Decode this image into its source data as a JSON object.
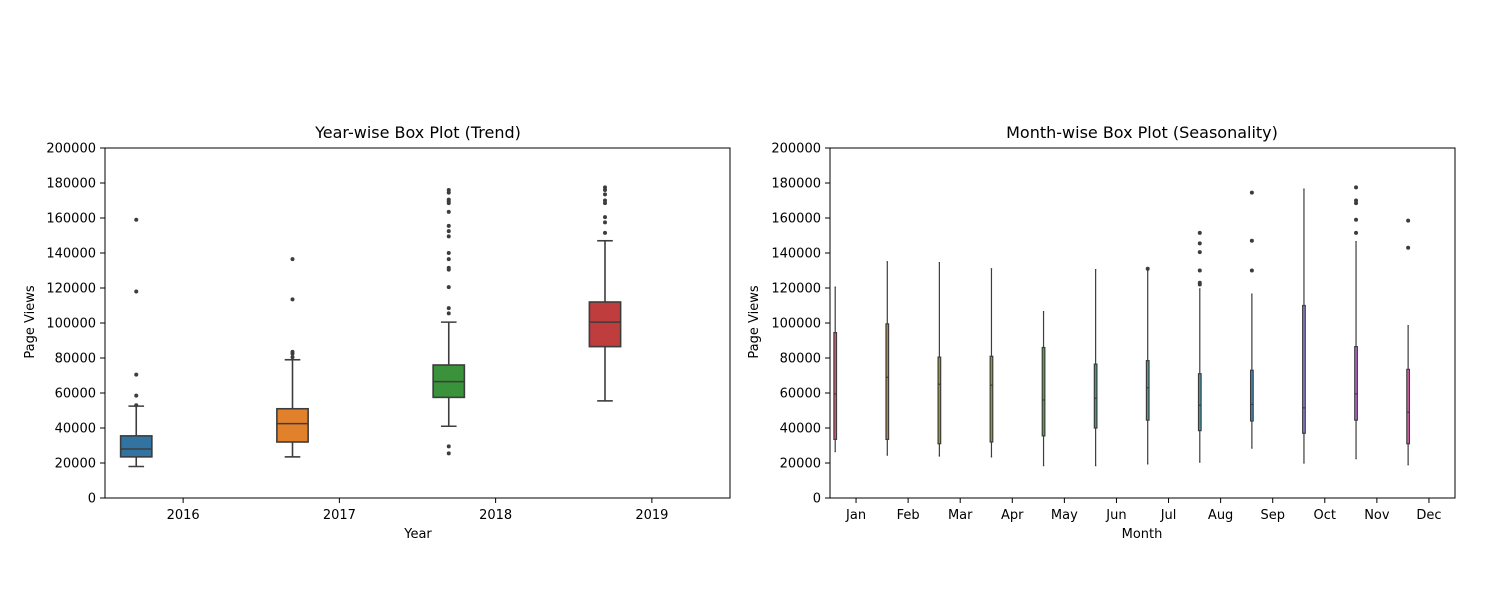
{
  "chart_data": [
    {
      "type": "boxplot",
      "title": "Year-wise Box Plot (Trend)",
      "xlabel": "Year",
      "ylabel": "Page Views",
      "ylim": [
        0,
        200000
      ],
      "yticks": [
        0,
        20000,
        40000,
        60000,
        80000,
        100000,
        120000,
        140000,
        160000,
        180000,
        200000
      ],
      "grid": false,
      "categories": [
        "2016",
        "2017",
        "2018",
        "2019"
      ],
      "series": [
        {
          "category": "2016",
          "color": "#3274a1",
          "q1": 23500,
          "median": 28000,
          "q3": 35500,
          "whislo": 18000,
          "whishi": 52500,
          "fliers": [
            53000,
            58500,
            70500,
            118000,
            159000
          ]
        },
        {
          "category": "2017",
          "color": "#e1812c",
          "q1": 32000,
          "median": 42500,
          "q3": 51000,
          "whislo": 23500,
          "whishi": 79000,
          "fliers": [
            80500,
            82500,
            83500,
            113500,
            136500
          ]
        },
        {
          "category": "2018",
          "color": "#3a923a",
          "q1": 57500,
          "median": 66500,
          "q3": 76000,
          "whislo": 41000,
          "whishi": 100500,
          "fliers": [
            25500,
            29500,
            105500,
            108500,
            120500,
            130500,
            131500,
            136500,
            140000,
            149500,
            152500,
            155500,
            163500,
            168500,
            169500,
            170500,
            174500,
            176000
          ]
        },
        {
          "category": "2019",
          "color": "#c03d3e",
          "q1": 86500,
          "median": 100500,
          "q3": 112000,
          "whislo": 55500,
          "whishi": 147000,
          "fliers": [
            151500,
            157500,
            160500,
            168500,
            170000,
            173500,
            176000,
            177500
          ]
        }
      ]
    },
    {
      "type": "boxplot",
      "title": "Month-wise Box Plot (Seasonality)",
      "xlabel": "Month",
      "ylabel": "Page Views",
      "ylim": [
        0,
        200000
      ],
      "yticks": [
        0,
        20000,
        40000,
        60000,
        80000,
        100000,
        120000,
        140000,
        160000,
        180000,
        200000
      ],
      "grid": false,
      "categories": [
        "Jan",
        "Feb",
        "Mar",
        "Apr",
        "May",
        "Jun",
        "Jul",
        "Aug",
        "Sep",
        "Oct",
        "Nov",
        "Dec"
      ],
      "series": [
        {
          "category": "Jan",
          "color": "#e1547a",
          "q1": 33500,
          "median": 59500,
          "q3": 94500,
          "whislo": 26500,
          "whishi": 120500,
          "fliers": []
        },
        {
          "category": "Feb",
          "color": "#b08a3a",
          "q1": 33500,
          "median": 69000,
          "q3": 99500,
          "whislo": 24500,
          "whishi": 135000,
          "fliers": []
        },
        {
          "category": "Mar",
          "color": "#9a9a2a",
          "q1": 31000,
          "median": 65000,
          "q3": 80500,
          "whislo": 24000,
          "whishi": 134500,
          "fliers": []
        },
        {
          "category": "Apr",
          "color": "#8aa02e",
          "q1": 32000,
          "median": 64500,
          "q3": 81000,
          "whislo": 23500,
          "whishi": 131000,
          "fliers": []
        },
        {
          "category": "May",
          "color": "#52a83a",
          "q1": 35500,
          "median": 56000,
          "q3": 86000,
          "whislo": 18500,
          "whishi": 106500,
          "fliers": []
        },
        {
          "category": "Jun",
          "color": "#3aa37a",
          "q1": 40000,
          "median": 57000,
          "q3": 76500,
          "whislo": 18500,
          "whishi": 130500,
          "fliers": []
        },
        {
          "category": "Jul",
          "color": "#3aa39a",
          "q1": 44500,
          "median": 63000,
          "q3": 78500,
          "whislo": 19500,
          "whishi": 130000,
          "fliers": [
            131000
          ]
        },
        {
          "category": "Aug",
          "color": "#3aa0b8",
          "q1": 38500,
          "median": 53000,
          "q3": 71000,
          "whislo": 20500,
          "whishi": 119500,
          "fliers": [
            122000,
            123000,
            130000,
            140500,
            145500,
            151500
          ]
        },
        {
          "category": "Sep",
          "color": "#3a8fc8",
          "q1": 44000,
          "median": 53500,
          "q3": 73000,
          "whislo": 28500,
          "whishi": 116500,
          "fliers": [
            130000,
            147000,
            174500
          ]
        },
        {
          "category": "Oct",
          "color": "#8c82e0",
          "q1": 37000,
          "median": 51500,
          "q3": 110000,
          "whislo": 20000,
          "whishi": 176500,
          "fliers": []
        },
        {
          "category": "Nov",
          "color": "#c06ad8",
          "q1": 44500,
          "median": 59500,
          "q3": 86500,
          "whislo": 22500,
          "whishi": 146500,
          "fliers": [
            151500,
            159000,
            168500,
            170000,
            177500
          ]
        },
        {
          "category": "Dec",
          "color": "#e063b0",
          "q1": 31000,
          "median": 49000,
          "q3": 73500,
          "whislo": 19000,
          "whishi": 98500,
          "fliers": [
            143000,
            158500
          ]
        }
      ]
    }
  ]
}
